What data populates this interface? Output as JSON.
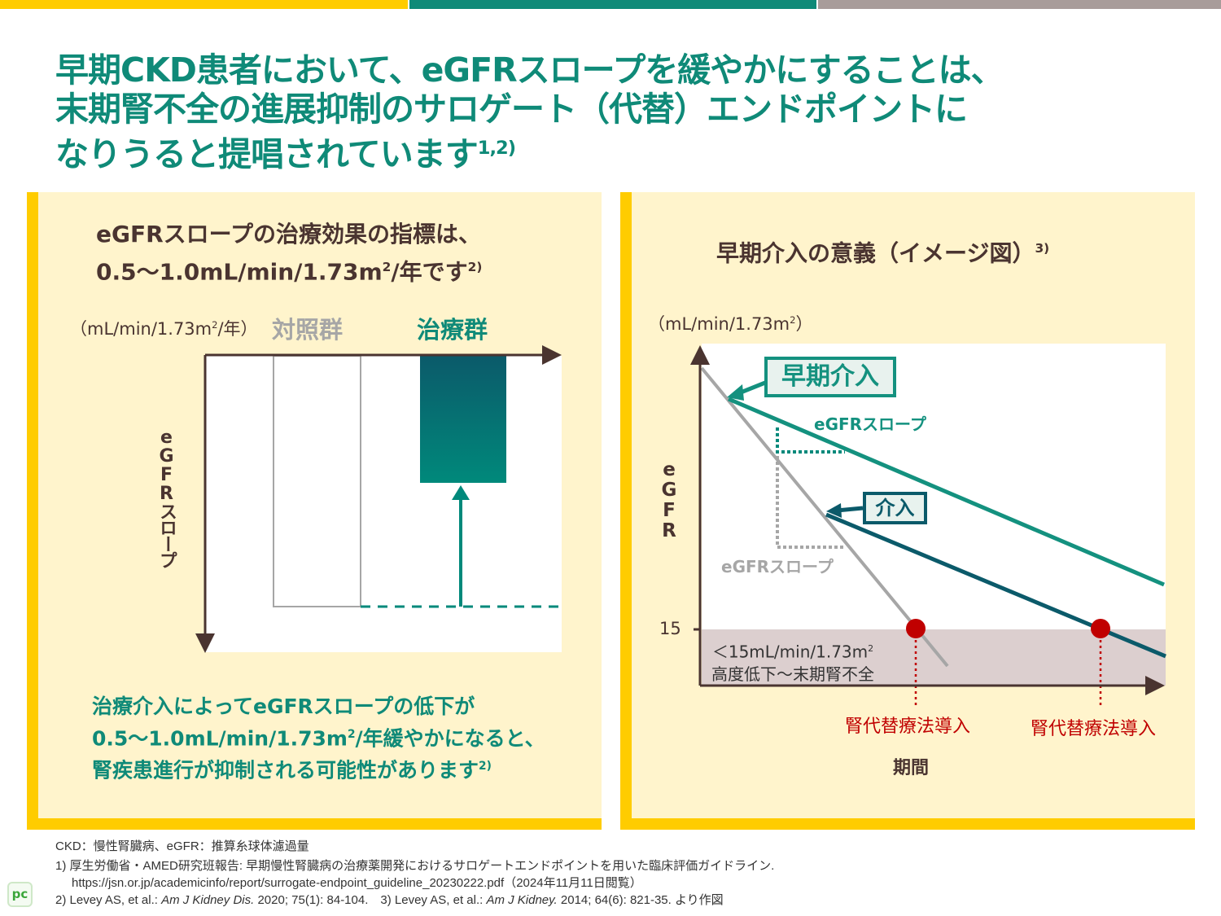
{
  "colors": {
    "yellow": "#ffcc00",
    "teal": "#00897b",
    "dark_teal": "#0b5a6a",
    "gray": "#a6a6a6",
    "red": "#c00000",
    "brown": "#4a3430"
  },
  "title": {
    "line1": "早期CKD患者において、eGFRスロープを緩やかにすることは、",
    "line2": "末期腎不全の進展抑制のサロゲート（代替）エンドポイントに",
    "line3": "なりうると提唱されています",
    "ref": "1,2)"
  },
  "left": {
    "title1": "eGFRスロープの治療効果の指標は、",
    "title2": "0.5〜1.0mL/min/1.73m",
    "title2_sup": "2",
    "title2_end": "/年です",
    "title_ref": "2)",
    "unit": "（mL/min/1.73m",
    "unit_sup": "2",
    "unit_end": "/年）",
    "control_label": "対照群",
    "treatment_label": "治療群",
    "y_label": "eGFRスロープ",
    "note1": "治療介入によってeGFRスロープの低下が",
    "note2": "0.5〜1.0mL/min/1.73m",
    "note2_sup": "2",
    "note2_end": "/年緩やかになると、",
    "note3": "腎疾患進行が抑制される可能性があります",
    "note_ref": "2)"
  },
  "right": {
    "title": "早期介入の意義（イメージ図）",
    "title_ref": "3)",
    "unit": "（mL/min/1.73m",
    "unit_sup": "2",
    "unit_end": "）",
    "y_label": "eGFR",
    "y_tick": "15",
    "early_label": "早期介入",
    "intervention_label": "介入",
    "slope_label_teal": "eGFRスロープ",
    "slope_label_gray": "eGFRスロープ",
    "zone_line1": "＜15mL/min/1.73m",
    "zone_sup": "2",
    "zone_line2": "高度低下〜末期腎不全",
    "krt1": "腎代替療法導入",
    "krt2": "腎代替療法導入",
    "x_label": "期間"
  },
  "footer": {
    "abbr": "CKD：慢性腎臓病、eGFR：推算糸球体濾過量",
    "ref1": "1) 厚生労働省・AMED研究班報告: 早期慢性腎臓病の治療薬開発におけるサロゲートエンドポイントを用いた臨床評価ガイドライン.",
    "ref1_url": "https://jsn.or.jp/academicinfo/report/surrogate-endpoint_guideline_20230222.pdf（2024年11月11日閲覧）",
    "ref2_a": "2) Levey AS, et al.: ",
    "ref2_j": "Am J Kidney Dis.",
    "ref2_b": " 2020; 75(1): 84-104.　3) Levey AS, et al.: ",
    "ref3_j": "Am J Kidney.",
    "ref3_b": " 2014; 64(6): 821-35. より作図",
    "logo": "PC"
  }
}
